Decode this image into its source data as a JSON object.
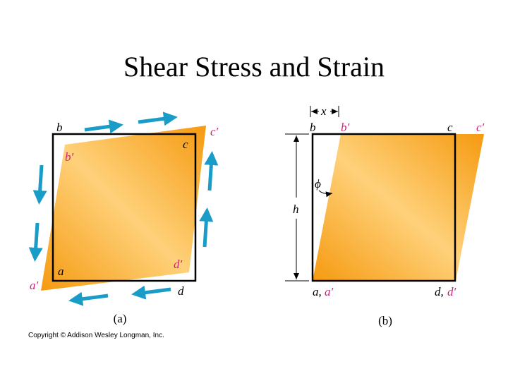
{
  "title": "Shear Stress and Strain",
  "figure_a": {
    "caption": "(a)",
    "labels": {
      "b": "b",
      "c": "c",
      "c_prime": "c′",
      "b_prime": "b′",
      "a": "a",
      "a_prime": "a′",
      "d_prime": "d′",
      "d": "d"
    }
  },
  "figure_b": {
    "caption": "(b)",
    "labels": {
      "x": "x",
      "h": "h",
      "phi": "ϕ",
      "b": "b",
      "b_prime": "b′",
      "c": "c",
      "c_prime": "c′",
      "a": "a,",
      "a_prime": "a′",
      "d": "d,",
      "d_prime": "d′"
    }
  },
  "copyright": "Copyright © Addison Wesley Longman, Inc."
}
